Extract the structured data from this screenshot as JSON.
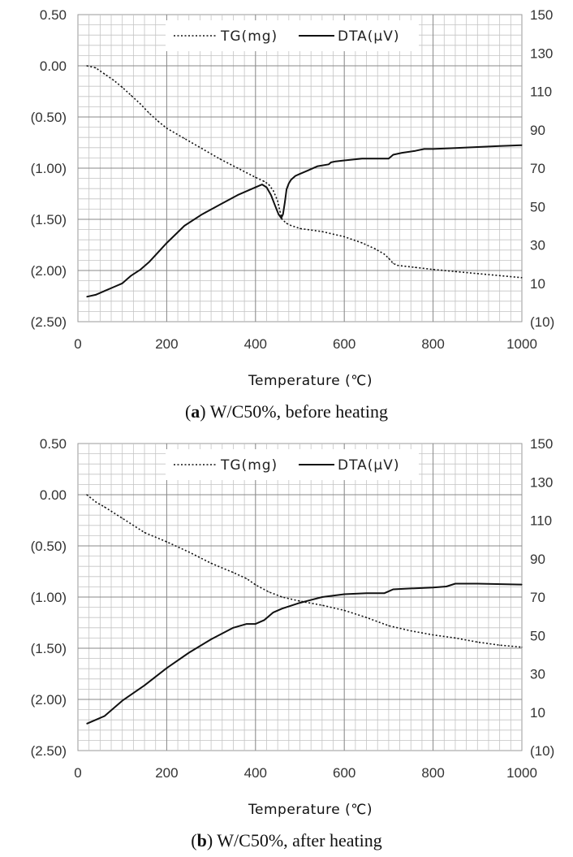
{
  "chart_data": [
    {
      "type": "line",
      "panel_letter": "a",
      "caption": "W/C50%, before heating",
      "xlabel": "Temperature (℃)",
      "x_ticks": [
        "0",
        "200",
        "400",
        "600",
        "800",
        "1000"
      ],
      "xlim": [
        0,
        1000
      ],
      "y_left_ticks": [
        "0.50",
        "0.00",
        "(0.50)",
        "(1.00)",
        "(1.50)",
        "(2.00)",
        "(2.50)"
      ],
      "ylim_left": [
        -2.5,
        0.5
      ],
      "y_right_ticks": [
        "150",
        "130",
        "110",
        "90",
        "70",
        "50",
        "30",
        "10",
        "(10)"
      ],
      "ylim_right": [
        -10,
        150
      ],
      "legend": {
        "tg": "TG(mg)",
        "dta": "DTA(μV)"
      },
      "grid": true,
      "series": [
        {
          "name": "TG(mg)",
          "axis": "left",
          "style": "dotted",
          "x": [
            20,
            40,
            60,
            80,
            100,
            120,
            140,
            160,
            180,
            200,
            240,
            280,
            320,
            360,
            400,
            420,
            430,
            440,
            450,
            455,
            460,
            470,
            480,
            500,
            550,
            600,
            640,
            670,
            690,
            700,
            710,
            720,
            760,
            800,
            850,
            900,
            950,
            1000
          ],
          "y": [
            0.0,
            -0.02,
            -0.08,
            -0.14,
            -0.21,
            -0.29,
            -0.37,
            -0.46,
            -0.54,
            -0.61,
            -0.71,
            -0.81,
            -0.91,
            -1.0,
            -1.09,
            -1.13,
            -1.16,
            -1.22,
            -1.32,
            -1.42,
            -1.5,
            -1.54,
            -1.56,
            -1.59,
            -1.62,
            -1.67,
            -1.73,
            -1.79,
            -1.84,
            -1.88,
            -1.93,
            -1.95,
            -1.97,
            -1.99,
            -2.01,
            -2.03,
            -2.05,
            -2.07
          ]
        },
        {
          "name": "DTA(μV)",
          "axis": "right",
          "style": "solid",
          "x": [
            20,
            40,
            60,
            80,
            100,
            120,
            140,
            160,
            180,
            200,
            240,
            280,
            320,
            360,
            400,
            415,
            425,
            435,
            445,
            452,
            458,
            462,
            466,
            470,
            475,
            480,
            490,
            500,
            520,
            540,
            565,
            570,
            580,
            600,
            640,
            660,
            700,
            710,
            730,
            760,
            780,
            800,
            850,
            900,
            950,
            1000
          ],
          "y": [
            3,
            4,
            6,
            8,
            10,
            14,
            17,
            21,
            26,
            31,
            40,
            46,
            51,
            56,
            60,
            61.5,
            60,
            56,
            50,
            46,
            44,
            46,
            52,
            59,
            62,
            64,
            66,
            67,
            69,
            71,
            72,
            73,
            73.5,
            74,
            75,
            75,
            75,
            77,
            78,
            79,
            80,
            80,
            80.5,
            81,
            81.5,
            82
          ]
        }
      ]
    },
    {
      "type": "line",
      "panel_letter": "b",
      "caption": "W/C50%, after heating",
      "xlabel": "Temperature (℃)",
      "x_ticks": [
        "0",
        "200",
        "400",
        "600",
        "800",
        "1000"
      ],
      "xlim": [
        0,
        1000
      ],
      "y_left_ticks": [
        "0.50",
        "0.00",
        "(0.50)",
        "(1.00)",
        "(1.50)",
        "(2.00)",
        "(2.50)"
      ],
      "ylim_left": [
        -2.5,
        0.5
      ],
      "y_right_ticks": [
        "150",
        "130",
        "110",
        "90",
        "70",
        "50",
        "30",
        "10",
        "(10)"
      ],
      "ylim_right": [
        -10,
        150
      ],
      "legend": {
        "tg": "TG(mg)",
        "dta": "DTA(μV)"
      },
      "grid": true,
      "series": [
        {
          "name": "TG(mg)",
          "axis": "left",
          "style": "dotted",
          "x": [
            20,
            40,
            60,
            100,
            150,
            200,
            250,
            300,
            350,
            380,
            400,
            430,
            460,
            500,
            550,
            600,
            650,
            700,
            750,
            800,
            850,
            900,
            950,
            1000
          ],
          "y": [
            0.0,
            -0.07,
            -0.12,
            -0.23,
            -0.37,
            -0.46,
            -0.56,
            -0.67,
            -0.76,
            -0.82,
            -0.88,
            -0.95,
            -1.0,
            -1.04,
            -1.08,
            -1.13,
            -1.2,
            -1.28,
            -1.33,
            -1.37,
            -1.4,
            -1.44,
            -1.47,
            -1.49
          ]
        },
        {
          "name": "DTA(μV)",
          "axis": "right",
          "style": "solid",
          "x": [
            20,
            40,
            60,
            80,
            100,
            150,
            200,
            250,
            300,
            350,
            380,
            400,
            420,
            440,
            460,
            500,
            550,
            600,
            650,
            690,
            700,
            710,
            750,
            800,
            830,
            850,
            900,
            1000
          ],
          "y": [
            4,
            6,
            8,
            12,
            16,
            24,
            33,
            41,
            48,
            54,
            56,
            56,
            58,
            62,
            64,
            67,
            70,
            71.5,
            72,
            72,
            73,
            74,
            74.5,
            75,
            75.5,
            77,
            77,
            76.5
          ]
        }
      ]
    }
  ]
}
